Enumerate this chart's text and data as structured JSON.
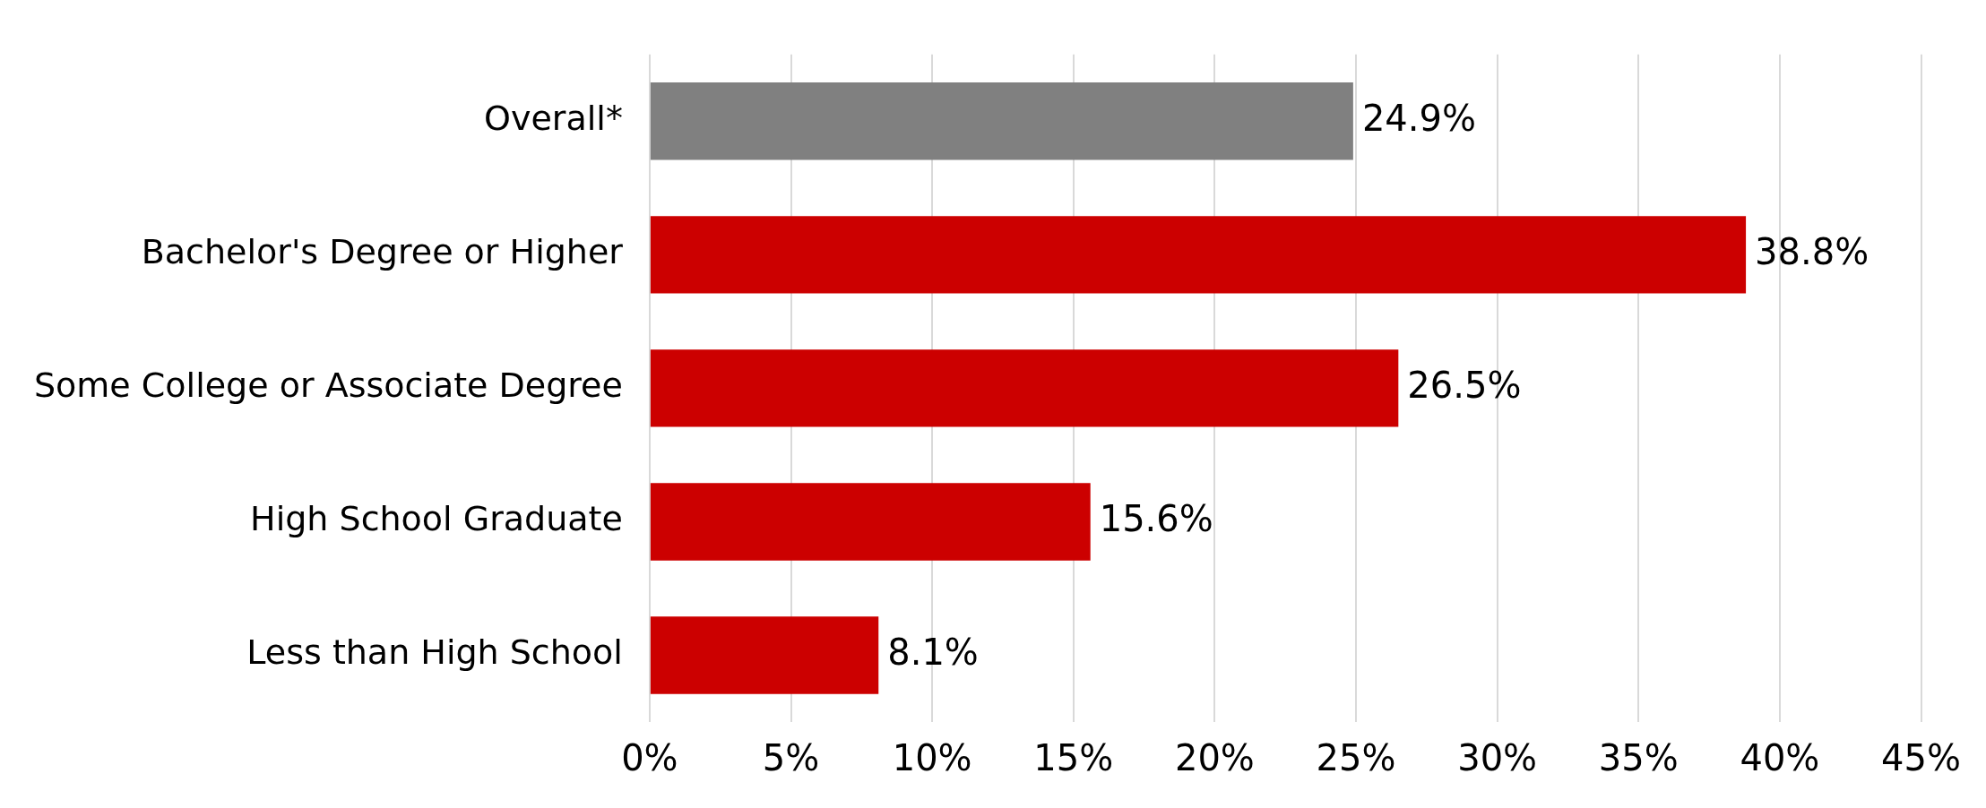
{
  "chart_data": {
    "type": "bar",
    "orientation": "horizontal",
    "categories": [
      "Overall*",
      "Bachelor's Degree or Higher",
      "Some College or Associate Degree",
      "High School Graduate",
      "Less than High School"
    ],
    "values": [
      24.9,
      38.8,
      26.5,
      15.6,
      8.1
    ],
    "colors": [
      "#808080",
      "#cc0000",
      "#cc0000",
      "#cc0000",
      "#cc0000"
    ],
    "value_labels": [
      "24.9%",
      "38.8%",
      "26.5%",
      "15.6%",
      "8.1%"
    ],
    "xlim": [
      0,
      45
    ],
    "xticks": [
      {
        "value": 0,
        "label": "0%"
      },
      {
        "value": 5,
        "label": "5%"
      },
      {
        "value": 10,
        "label": "10%"
      },
      {
        "value": 15,
        "label": "15%"
      },
      {
        "value": 20,
        "label": "20%"
      },
      {
        "value": 25,
        "label": "25%"
      },
      {
        "value": 30,
        "label": "30%"
      },
      {
        "value": 35,
        "label": "35%"
      },
      {
        "value": 40,
        "label": "40%"
      },
      {
        "value": 45,
        "label": "45%"
      }
    ],
    "grid": "x",
    "legend": false
  }
}
